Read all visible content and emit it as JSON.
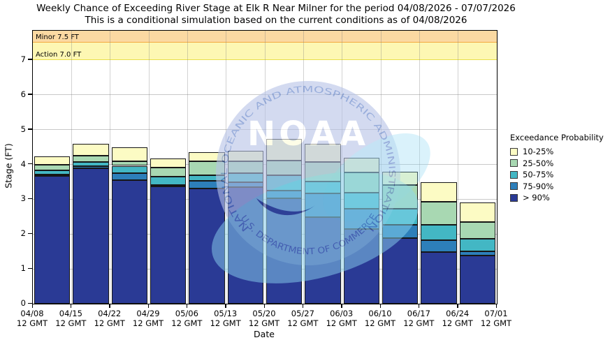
{
  "title": "Weekly Chance of Exceeding River Stage at Elk R Near Milner for the period 04/08/2026 - 07/07/2026",
  "subtitle": "This is a conditional simulation based on the current conditions as of 04/08/2026",
  "axes": {
    "ylabel": "Stage (FT)",
    "xlabel": "Date",
    "yticks": [
      0,
      1,
      2,
      3,
      4,
      5,
      6,
      7
    ],
    "xtick_time_label": "12 GMT"
  },
  "watermark": {
    "org": "NOAA",
    "ring_top_text": "NATIONAL OCEANIC AND ATMOSPHERIC ADMINISTRATION",
    "ring_bottom_text": "U.S. DEPARTMENT OF COMMERCE",
    "circle_color": "#b6c3e7",
    "ring_text_color": "#5577c4",
    "swoosh_color": "#8ed9f2",
    "wing_color": "#27348f"
  },
  "chart_data": {
    "type": "bar",
    "stacked": true,
    "title": "Weekly Chance of Exceeding River Stage at Elk R Near Milner for the period 04/08/2026 - 07/07/2026",
    "subtitle": "This is a conditional simulation based on the current conditions as of 04/08/2026",
    "xlabel": "Date",
    "ylabel": "Stage (FT)",
    "ylim": [
      0,
      7.84
    ],
    "grid": true,
    "categories": [
      "04/08",
      "04/15",
      "04/22",
      "04/29",
      "05/06",
      "05/13",
      "05/20",
      "05/27",
      "06/03",
      "06/10",
      "06/17",
      "06/24",
      "07/01"
    ],
    "flood_stages": [
      {
        "label": "Minor 7.5 FT",
        "name": "Minor",
        "stage_ft": 7.5,
        "band_fill": "#fbd9a2",
        "band_line": "#f3a83f"
      },
      {
        "label": "Action 7.0 FT",
        "name": "Action",
        "stage_ft": 7.0,
        "band_fill": "#fdf7b3",
        "band_line": "#e9df4a"
      }
    ],
    "legend": {
      "title": "Exceedance Probability",
      "position": "right",
      "items": [
        {
          "label": "10-25%",
          "color": "#fcfbc4"
        },
        {
          "label": "25-50%",
          "color": "#a8d8b2"
        },
        {
          "label": "50-75%",
          "color": "#43b7c4"
        },
        {
          "label": "75-90%",
          "color": "#2d7fba"
        },
        {
          "label": "> 90%",
          "color": "#2a3a95"
        }
      ]
    },
    "bars_note": "stage_ft exceeded with given probability; each bar spans one week",
    "bars": [
      {
        "week": "04/08 - 04/15",
        "p90": 3.66,
        "p75": 3.7,
        "p50": 3.82,
        "p25": 4.0,
        "p10": 4.24
      },
      {
        "week": "04/15 - 04/22",
        "p90": 3.89,
        "p75": 3.96,
        "p50": 4.07,
        "p25": 4.25,
        "p10": 4.59
      },
      {
        "week": "04/22 - 04/29",
        "p90": 3.54,
        "p75": 3.74,
        "p50": 3.96,
        "p25": 4.1,
        "p10": 4.49
      },
      {
        "week": "04/29 - 05/06",
        "p90": 3.36,
        "p75": 3.41,
        "p50": 3.64,
        "p25": 3.9,
        "p10": 4.17
      },
      {
        "week": "05/06 - 05/13",
        "p90": 3.31,
        "p75": 3.52,
        "p50": 3.68,
        "p25": 4.09,
        "p10": 4.36
      },
      {
        "week": "05/13 - 05/20",
        "p90": 3.34,
        "p75": 3.49,
        "p50": 3.74,
        "p25": 4.1,
        "p10": 4.39
      },
      {
        "week": "05/20 - 05/27",
        "p90": 3.02,
        "p75": 3.24,
        "p50": 3.69,
        "p25": 4.12,
        "p10": 4.74
      },
      {
        "week": "05/27 - 06/03",
        "p90": 2.49,
        "p75": 3.16,
        "p50": 3.51,
        "p25": 4.08,
        "p10": 4.6
      },
      {
        "week": "06/03 - 06/10",
        "p90": 2.14,
        "p75": 2.72,
        "p50": 3.19,
        "p25": 3.76,
        "p10": 4.2
      },
      {
        "week": "06/10 - 06/17",
        "p90": 1.89,
        "p75": 2.27,
        "p50": 2.72,
        "p25": 3.41,
        "p10": 3.79
      },
      {
        "week": "06/17 - 06/24",
        "p90": 1.49,
        "p75": 1.82,
        "p50": 2.27,
        "p25": 2.92,
        "p10": 3.49
      },
      {
        "week": "06/24 - 07/01",
        "p90": 1.38,
        "p75": 1.5,
        "p50": 1.87,
        "p25": 2.34,
        "p10": 2.9
      }
    ]
  }
}
